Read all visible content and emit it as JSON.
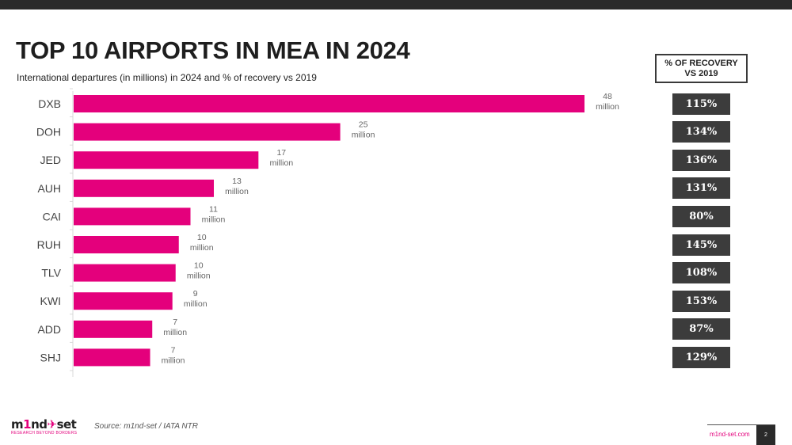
{
  "header": {
    "title": "TOP 10 AIRPORTS IN MEA IN 2024",
    "subtitle": "International departures (in millions) in 2024 and % of recovery vs 2019",
    "recovery_header": "% OF RECOVERY\nVS 2019"
  },
  "colors": {
    "bar": "#e4007c",
    "badge": "#3c3c3c",
    "topbar": "#2a2a2a"
  },
  "chart_data": {
    "type": "bar",
    "orientation": "horizontal",
    "title": "TOP 10 AIRPORTS IN MEA IN 2024",
    "subtitle": "International departures (in millions) in 2024 and % of recovery vs 2019",
    "xlabel": "",
    "ylabel": "",
    "unit": "million",
    "categories": [
      "DXB",
      "DOH",
      "JED",
      "AUH",
      "CAI",
      "RUH",
      "TLV",
      "KWI",
      "ADD",
      "SHJ"
    ],
    "values": [
      48.1,
      25.1,
      17.4,
      13.2,
      11.0,
      9.9,
      9.6,
      9.3,
      7.4,
      7.2
    ],
    "data_labels": [
      "48",
      "25",
      "17",
      "13",
      "11",
      "10",
      "10",
      "9",
      "7",
      "7"
    ],
    "data_label_unit": "million",
    "xlim": [
      0,
      48.1
    ],
    "grid": false,
    "legend": "none",
    "recovery_vs_2019": [
      "115%",
      "134%",
      "136%",
      "131%",
      "80%",
      "145%",
      "108%",
      "153%",
      "87%",
      "129%"
    ]
  },
  "footer": {
    "logo_main_a": "m",
    "logo_main_b": "1",
    "logo_main_c": "nd",
    "logo_main_d": "✈",
    "logo_main_e": "set",
    "logo_tagline": "RESEARCH BEYOND BORDERS",
    "source": "Source: m1nd-set / IATA NTR",
    "url": "m1nd-set.com",
    "page_number": "2"
  }
}
